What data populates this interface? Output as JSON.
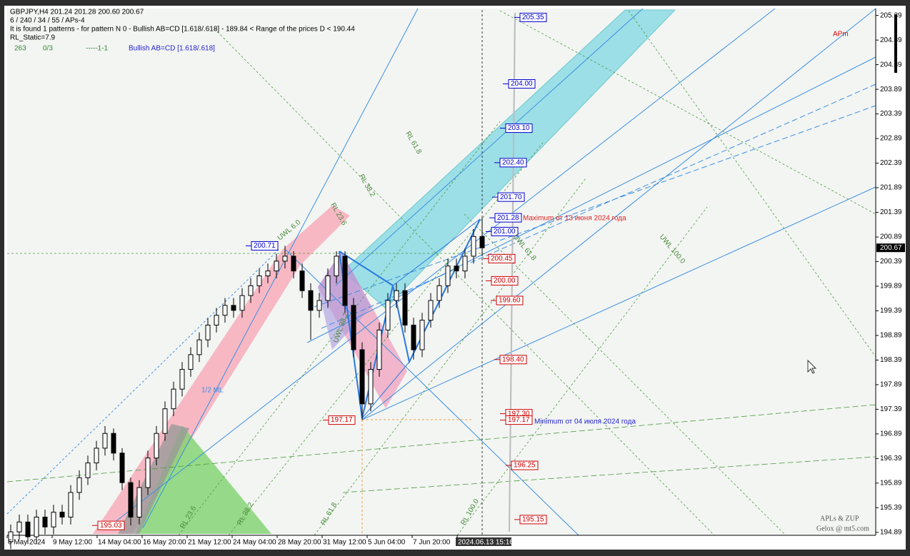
{
  "chart_data": {
    "type": "candlestick",
    "header": [
      "GBPJPY,H4  201.24 201.28 200.60 200.67",
      "6 / 240 / 34 / 55 / APs-4",
      "It is found 1 patterns  -  for pattern N 0 - Bullish AB=CD [1.618/.618] - 189.84 < Range of the prices D < 190.44",
      "RL_Static=7.9"
    ],
    "status": [
      "263",
      "0/3",
      "-----1-1",
      "Bullish AB=CD [1.618/.618]"
    ],
    "annotations": [
      "APm",
      "Maximum  от 13 июня 2024 года",
      "Minimum от 04 июля 2024 года",
      "1/2 ML",
      "APLs & ZUP",
      "Gelox @ mt5.com"
    ],
    "line_labels": [
      "RL 23.6",
      "RL 38.2",
      "RL 61.8",
      "RL 100.0",
      "RL 61.8",
      "RL 38.2",
      "RL 23.6",
      "UWL 61.8",
      "UWL 100.0",
      "UWL 6.0",
      "UWL 38.2"
    ],
    "x_labels": [
      "6 May 2024",
      "9 May 12:00",
      "14 May 04:00",
      "16 May 20:00",
      "21 May 12:00",
      "24 May 04:00",
      "28 May 20:00",
      "31 May 12:00",
      "5 Jun 04:00",
      "7 Jun 20:00",
      "2024.06.13 15:16"
    ],
    "open": [
      194.7,
      194.9,
      195.1,
      194.8,
      195.2,
      195.0,
      195.3,
      195.2,
      195.7,
      196.0,
      196.3,
      196.6,
      196.9,
      196.5,
      195.9,
      195.2,
      195.8,
      196.4,
      196.9,
      197.4,
      197.8,
      198.2,
      198.5,
      198.8,
      199.1,
      199.3,
      199.5,
      199.4,
      199.7,
      199.9,
      200.1,
      200.2,
      200.4,
      200.5,
      200.2,
      199.8,
      199.4,
      199.6,
      200.1,
      200.5,
      199.5,
      198.6,
      197.5,
      198.2,
      199.0,
      199.6,
      199.8,
      199.1,
      198.6,
      199.2,
      199.6,
      199.9,
      200.3,
      200.2,
      200.5,
      200.9
    ],
    "high": [
      195.05,
      195.25,
      195.25,
      195.35,
      195.35,
      195.45,
      195.45,
      195.85,
      196.15,
      196.45,
      196.75,
      197.05,
      197.0,
      196.6,
      196.0,
      195.95,
      196.55,
      197.05,
      197.55,
      197.95,
      198.35,
      198.65,
      198.95,
      199.25,
      199.45,
      199.65,
      199.65,
      199.85,
      200.05,
      200.25,
      200.35,
      200.55,
      200.71,
      200.6,
      200.35,
      199.95,
      199.75,
      200.25,
      200.6,
      200.6,
      199.65,
      198.75,
      198.35,
      199.15,
      199.75,
      199.95,
      199.95,
      199.25,
      199.35,
      199.75,
      200.05,
      200.45,
      200.45,
      200.65,
      201.05,
      201.28
    ],
    "low": [
      194.55,
      194.75,
      194.65,
      194.65,
      194.85,
      194.85,
      195.05,
      195.05,
      195.55,
      195.85,
      196.15,
      196.45,
      196.35,
      195.75,
      195.03,
      195.05,
      195.65,
      196.25,
      196.75,
      197.25,
      197.65,
      198.05,
      198.35,
      198.65,
      198.95,
      199.15,
      199.25,
      199.25,
      199.55,
      199.75,
      199.95,
      200.05,
      200.25,
      200.05,
      199.65,
      198.8,
      199.25,
      199.45,
      199.95,
      199.35,
      198.45,
      197.17,
      197.35,
      198.05,
      198.85,
      199.45,
      198.95,
      198.4,
      198.45,
      199.05,
      199.45,
      199.75,
      200.05,
      200.05,
      200.35,
      200.5
    ],
    "close": [
      194.9,
      195.1,
      194.8,
      195.2,
      195.0,
      195.3,
      195.2,
      195.7,
      196.0,
      196.3,
      196.6,
      196.9,
      196.5,
      195.9,
      195.2,
      195.8,
      196.4,
      196.9,
      197.4,
      197.8,
      198.2,
      198.5,
      198.8,
      199.1,
      199.3,
      199.5,
      199.4,
      199.7,
      199.9,
      200.1,
      200.2,
      200.4,
      200.5,
      200.2,
      199.8,
      199.4,
      199.6,
      200.1,
      200.5,
      199.5,
      198.6,
      197.5,
      198.2,
      199.0,
      199.6,
      199.8,
      199.1,
      198.6,
      199.2,
      199.6,
      199.9,
      200.3,
      200.2,
      200.5,
      200.9,
      200.67
    ],
    "last_price": 200.67,
    "levels": [
      {
        "value": 205.35,
        "color": "#0000cc"
      },
      {
        "value": 204,
        "label": "204.00",
        "color": "#0000cc"
      },
      {
        "value": 203.1,
        "label": "203.10",
        "color": "#0000cc"
      },
      {
        "value": 202.4,
        "label": "202.40",
        "color": "#0000cc"
      },
      {
        "value": 201.7,
        "label": "201.70",
        "color": "#0000cc"
      },
      {
        "value": 201.28,
        "color": "#0000cc"
      },
      {
        "value": 201,
        "label": "201.00",
        "color": "#0000cc"
      },
      {
        "value": 200.45,
        "color": "#cc0000"
      },
      {
        "value": 200,
        "label": "200.00",
        "color": "#cc0000"
      },
      {
        "value": 199.6,
        "label": "199.60",
        "color": "#cc0000"
      },
      {
        "value": 198.4,
        "label": "198.40",
        "color": "#cc0000"
      },
      {
        "value": 197.3,
        "label": "197.30",
        "color": "#cc0000"
      },
      {
        "value": 197.17,
        "color": "#cc0000"
      },
      {
        "value": 196.25,
        "color": "#cc0000"
      },
      {
        "value": 195.15,
        "color": "#cc0000"
      },
      {
        "value": 200.71,
        "color": "#0000cc"
      },
      {
        "value": 197.17,
        "color": "#cc0000"
      },
      {
        "value": 195.03,
        "color": "#cc0000"
      }
    ],
    "ylim": [
      194.83,
      205.53
    ],
    "yticks": [
      205.39,
      204.89,
      204.39,
      203.89,
      203.39,
      202.89,
      202.39,
      201.89,
      201.39,
      200.89,
      200.39,
      199.89,
      199.39,
      198.89,
      198.39,
      197.89,
      197.39,
      196.89,
      196.39,
      195.89,
      195.39,
      194.89
    ]
  }
}
